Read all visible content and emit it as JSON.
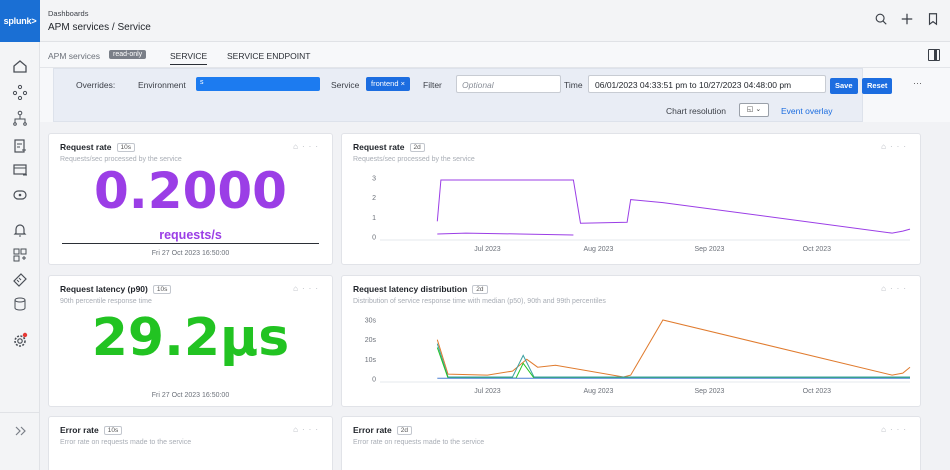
{
  "app": {
    "logo": "splunk>"
  },
  "breadcrumb": {
    "section": "Dashboards",
    "title": "APM services / Service"
  },
  "tabs": {
    "apm_services": "APM services",
    "readonly": "read-only",
    "service": "SERVICE",
    "service_endpoint": "SERVICE ENDPOINT"
  },
  "overrides": {
    "label": "Overrides:",
    "environment_label": "Environment",
    "environment_value": "s",
    "service_label": "Service",
    "service_chip": "frontend ×",
    "filter_label": "Filter",
    "filter_placeholder": "Optional",
    "time_label": "Time",
    "time_value": "06/01/2023 04:33:51 pm to 10/27/2023 04:48:00 pm",
    "save": "Save",
    "reset": "Reset",
    "more": "···",
    "chart_resolution_label": "Chart resolution",
    "event_overlay": "Event overlay"
  },
  "cards": {
    "req_rate_single": {
      "title": "Request rate",
      "badge": "10s",
      "subtitle": "Requests/sec processed by the service",
      "value": "0.2000",
      "unit": "requests/s",
      "timestamp": "Fri 27 Oct 2023 16:50:00"
    },
    "req_rate_chart": {
      "title": "Request rate",
      "badge": "2d",
      "subtitle": "Requests/sec processed by the service"
    },
    "latency_single": {
      "title": "Request latency (p90)",
      "badge": "10s",
      "subtitle": "90th percentile response time",
      "value": "29.2µs",
      "timestamp": "Fri 27 Oct 2023 16:50:00"
    },
    "latency_chart": {
      "title": "Request latency distribution",
      "badge": "2d",
      "subtitle": "Distribution of service response time with median (p50), 90th and 99th percentiles"
    },
    "error_single": {
      "title": "Error rate",
      "badge": "10s",
      "subtitle": "Error rate on requests made to the service"
    },
    "error_chart": {
      "title": "Error rate",
      "badge": "2d",
      "subtitle": "Error rate on requests made to the service"
    }
  },
  "colors": {
    "accent_blue": "#1c6de0",
    "purple": "#9b3ee6",
    "green": "#22c322",
    "orange": "#e07b2e"
  },
  "chart_data": [
    {
      "type": "line",
      "title": "Request rate",
      "x_ticks": [
        "Jul 2023",
        "Aug 2023",
        "Sep 2023",
        "Oct 2023"
      ],
      "y_ticks": [
        "3",
        "2",
        "1",
        "0"
      ],
      "ylim": [
        0,
        3
      ],
      "xlim": [
        "2023-06-01",
        "2023-10-27"
      ],
      "series": [
        {
          "color": "#9b3ee6",
          "x": [
            "2023-06-17",
            "2023-06-18",
            "2023-06-20",
            "2023-07-05",
            "2023-07-20",
            "2023-07-25",
            "2023-07-27",
            "2023-08-09",
            "2023-08-10",
            "2023-08-19",
            "2023-10-22",
            "2023-10-25",
            "2023-10-27"
          ],
          "y": [
            0.8,
            2.9,
            2.9,
            2.9,
            2.9,
            2.9,
            0.7,
            0.75,
            1.9,
            1.75,
            0.2,
            0.3,
            0.4
          ]
        },
        {
          "color": "#9b3ee6",
          "x": [
            "2023-06-17",
            "2023-06-25",
            "2023-07-10",
            "2023-07-25"
          ],
          "y": [
            0.15,
            0.2,
            0.15,
            0.1
          ]
        }
      ]
    },
    {
      "type": "line",
      "title": "Request latency distribution",
      "x_ticks": [
        "Jul 2023",
        "Aug 2023",
        "Sep 2023",
        "Oct 2023"
      ],
      "y_ticks": [
        "30s",
        "20s",
        "10s",
        "0"
      ],
      "ylim": [
        0,
        30
      ],
      "xlim": [
        "2023-06-01",
        "2023-10-27"
      ],
      "series": [
        {
          "color": "#e07b2e",
          "x": [
            "2023-06-17",
            "2023-06-20",
            "2023-07-01",
            "2023-07-08",
            "2023-07-12",
            "2023-07-15",
            "2023-07-20",
            "2023-08-08",
            "2023-08-10",
            "2023-08-19",
            "2023-10-22",
            "2023-10-25",
            "2023-10-27"
          ],
          "y": [
            20,
            2.5,
            2,
            4,
            10,
            6,
            7,
            1,
            2,
            30,
            2,
            3,
            6
          ]
        },
        {
          "color": "#3aa0a0",
          "x": [
            "2023-06-17",
            "2023-06-20",
            "2023-07-08",
            "2023-07-11",
            "2023-07-14",
            "2023-07-20",
            "2023-10-27"
          ],
          "y": [
            18,
            1,
            1,
            12,
            1,
            1,
            1
          ]
        },
        {
          "color": "#22c322",
          "x": [
            "2023-06-17",
            "2023-06-20",
            "2023-07-09",
            "2023-07-11",
            "2023-07-14",
            "2023-10-27"
          ],
          "y": [
            16,
            0.5,
            0.5,
            8,
            0.5,
            0.5
          ]
        },
        {
          "color": "#4a7fd4",
          "x": [
            "2023-06-17",
            "2023-06-20",
            "2023-10-27"
          ],
          "y": [
            0.4,
            0.4,
            0.4
          ]
        }
      ]
    }
  ]
}
